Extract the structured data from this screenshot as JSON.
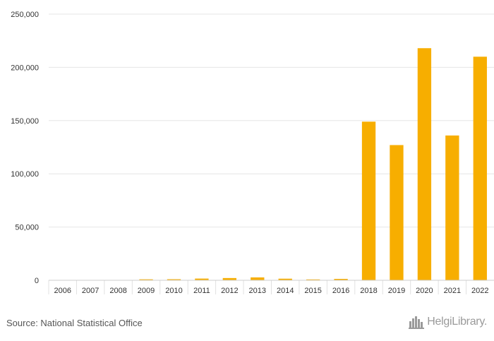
{
  "chart_data": {
    "type": "bar",
    "categories": [
      "2006",
      "2007",
      "2008",
      "2009",
      "2010",
      "2011",
      "2012",
      "2013",
      "2014",
      "2015",
      "2016",
      "2018",
      "2019",
      "2020",
      "2021",
      "2022"
    ],
    "values": [
      200,
      200,
      200,
      900,
      1000,
      1600,
      2100,
      2700,
      1500,
      800,
      1300,
      149000,
      127000,
      218000,
      136000,
      210000
    ],
    "ylim": [
      0,
      250000
    ],
    "yticks": [
      0,
      50000,
      100000,
      150000,
      200000,
      250000
    ],
    "ytick_labels": [
      "0",
      "50,000",
      "100,000",
      "150,000",
      "200,000",
      "250,000"
    ],
    "grid": true,
    "bar_color": "#f7ae00",
    "title": "",
    "xlabel": "",
    "ylabel": ""
  },
  "footer": {
    "source": "Source: National Statistical Office",
    "brand": "HelgiLibrary."
  },
  "colors": {
    "bar": "#f7ae00",
    "grid": "#e6e6e6",
    "text": "#333333"
  },
  "icons": {
    "brand_logo": "city-skyline-icon"
  }
}
